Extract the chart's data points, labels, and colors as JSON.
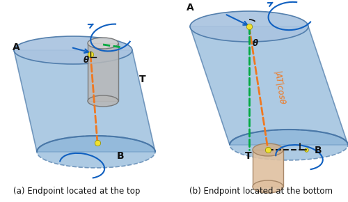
{
  "fig_width": 5.0,
  "fig_height": 2.9,
  "dpi": 100,
  "bg_color": "#ffffff",
  "cyl_fill": "#8ab4d8",
  "cyl_edge": "#4a78a8",
  "cyl_alpha": 0.7,
  "top_fill": "#aac4e0",
  "drill_gray_body": "#b8b8b8",
  "drill_gray_top": "#d0d0d0",
  "drill_gray_edge": "#707070",
  "drill_tan_body": "#dfc0a0",
  "drill_tan_top": "#cdb090",
  "drill_tan_edge": "#a08060",
  "orange": "#f07820",
  "green": "#00aa40",
  "blue_arr": "#1060c0",
  "yellow": "#f0e030",
  "black": "#111111",
  "dark_blue_dash": "#3060a0",
  "caption_a": "(a) Endpoint located at the top",
  "caption_b": "(b) Endpoint located at the bottom",
  "cap_fs": 8.5,
  "lbl_fs": 10,
  "theta": "θ",
  "AT_lbl": "|AT|cosθ"
}
